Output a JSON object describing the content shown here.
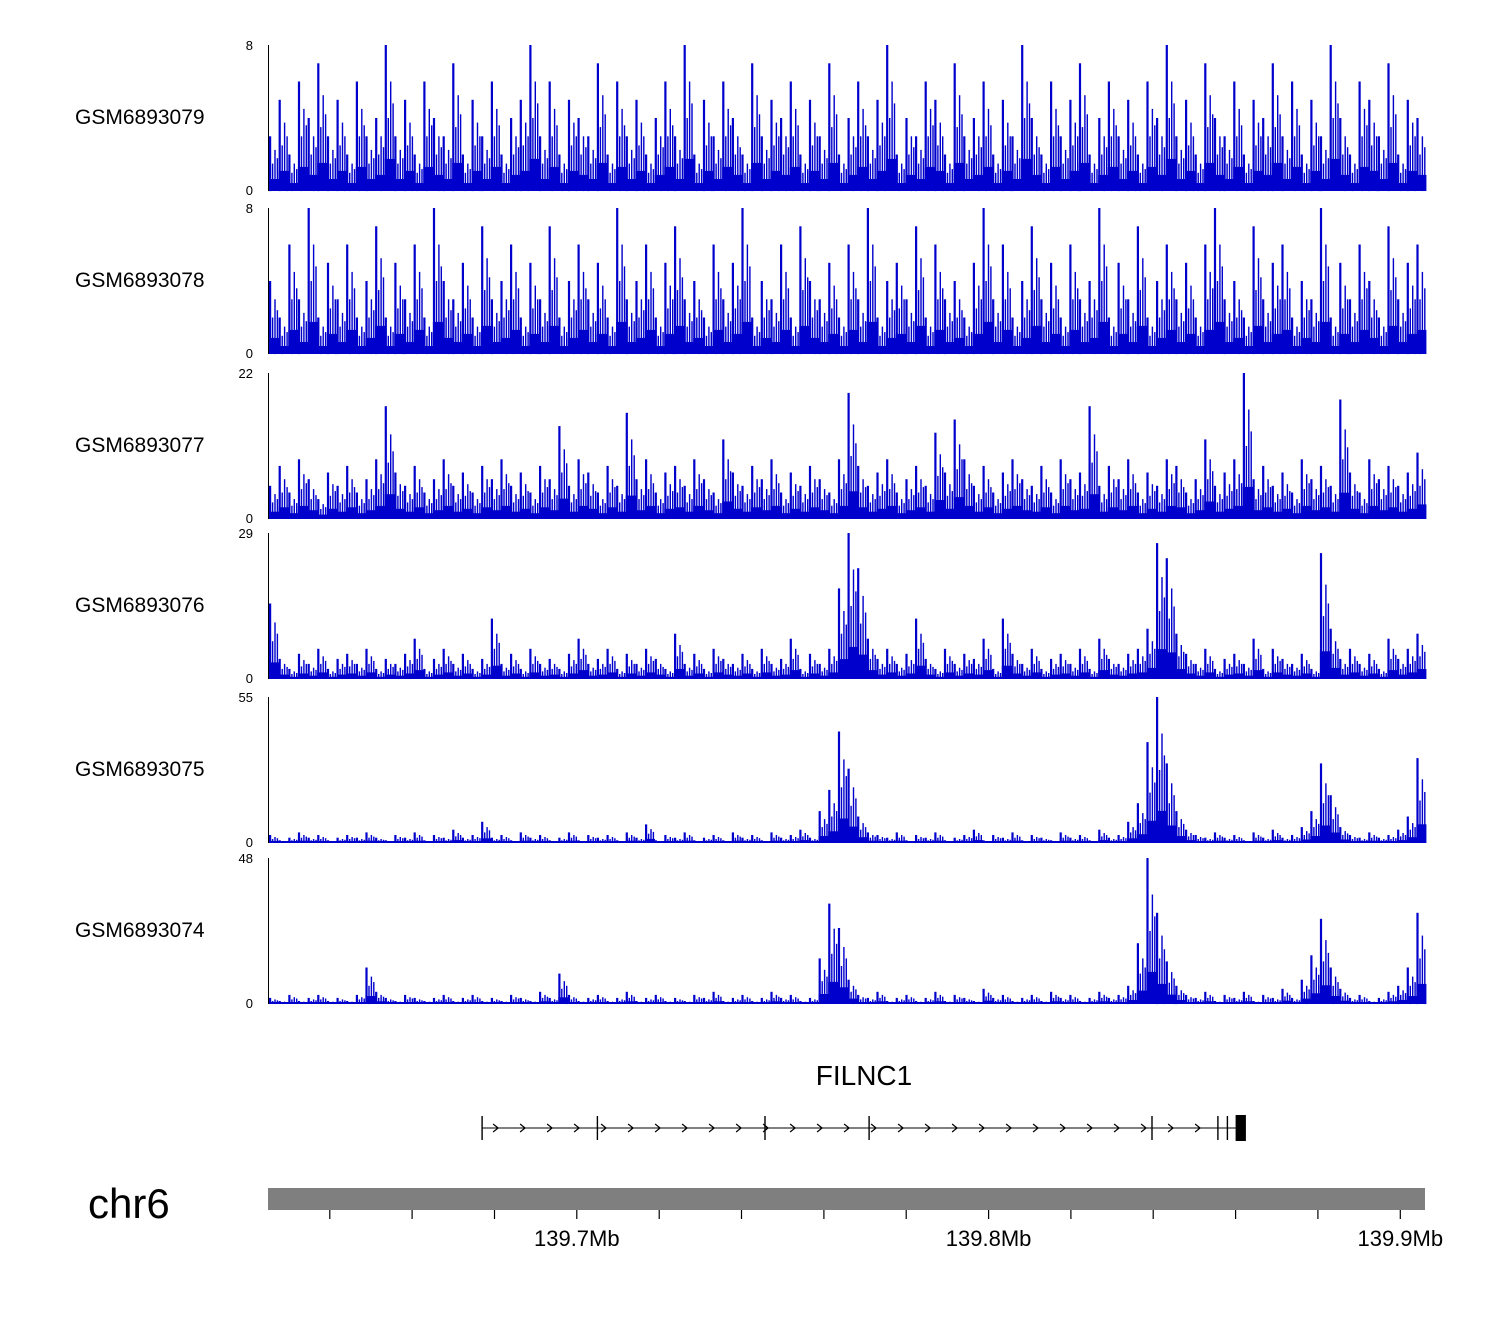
{
  "chart_data": {
    "type": "area",
    "subtype": "genome-coverage-tracks",
    "signal_color": "#0000CC",
    "chrom_bar_color": "#7f7f7f",
    "tracks": [
      {
        "label": "GSM6893079",
        "ymax": 8,
        "ymin": 0,
        "values": [
          3,
          5,
          2,
          6,
          4,
          7,
          3,
          5,
          2,
          6,
          3,
          4,
          8,
          3,
          5,
          2,
          6,
          4,
          3,
          7,
          2,
          5,
          3,
          6,
          2,
          4,
          5,
          8,
          3,
          6,
          2,
          5,
          4,
          3,
          7,
          2,
          6,
          3,
          5,
          2,
          4,
          6,
          3,
          8,
          2,
          5,
          3,
          6,
          4,
          2,
          7,
          3,
          5,
          4,
          6,
          2,
          5,
          3,
          7,
          2,
          4,
          6,
          3,
          5,
          8,
          2,
          4,
          3,
          6,
          5,
          2,
          7,
          3,
          4,
          6,
          2,
          5,
          3,
          8,
          4,
          2,
          6,
          3,
          5,
          7,
          2,
          4,
          6,
          3,
          5,
          2,
          6,
          4,
          8,
          3,
          5,
          2,
          7,
          4,
          3,
          6,
          2,
          5,
          4,
          7,
          3,
          6,
          2,
          5,
          3,
          8,
          4,
          2,
          6,
          5,
          3,
          7,
          2,
          5,
          4
        ]
      },
      {
        "label": "GSM6893078",
        "ymax": 8,
        "ymin": 0,
        "values": [
          4,
          2,
          6,
          3,
          8,
          2,
          5,
          3,
          6,
          2,
          4,
          7,
          2,
          5,
          3,
          6,
          2,
          8,
          4,
          3,
          5,
          2,
          7,
          3,
          4,
          6,
          2,
          5,
          3,
          7,
          2,
          4,
          6,
          3,
          5,
          2,
          8,
          3,
          4,
          6,
          2,
          5,
          7,
          3,
          4,
          2,
          6,
          3,
          5,
          8,
          2,
          4,
          3,
          6,
          2,
          7,
          4,
          3,
          5,
          2,
          6,
          3,
          8,
          2,
          4,
          5,
          3,
          7,
          2,
          6,
          3,
          4,
          2,
          5,
          8,
          3,
          6,
          2,
          4,
          7,
          3,
          5,
          2,
          6,
          3,
          4,
          8,
          2,
          5,
          3,
          7,
          2,
          4,
          6,
          3,
          5,
          2,
          6,
          8,
          3,
          4,
          2,
          7,
          3,
          5,
          6,
          2,
          4,
          3,
          8,
          2,
          5,
          3,
          6,
          4,
          2,
          7,
          3,
          5,
          6
        ]
      },
      {
        "label": "GSM6893077",
        "ymax": 22,
        "ymin": 0,
        "values": [
          5,
          8,
          4,
          9,
          6,
          3,
          7,
          5,
          8,
          4,
          6,
          9,
          17,
          7,
          5,
          8,
          4,
          6,
          9,
          5,
          7,
          4,
          8,
          6,
          9,
          5,
          7,
          4,
          8,
          6,
          14,
          5,
          9,
          7,
          4,
          8,
          5,
          16,
          6,
          9,
          4,
          7,
          8,
          5,
          9,
          6,
          4,
          12,
          7,
          5,
          8,
          6,
          9,
          4,
          7,
          5,
          8,
          6,
          4,
          9,
          19,
          8,
          5,
          7,
          9,
          4,
          6,
          8,
          5,
          13,
          7,
          15,
          9,
          5,
          8,
          4,
          7,
          9,
          6,
          5,
          8,
          4,
          9,
          6,
          7,
          17,
          5,
          8,
          6,
          9,
          4,
          7,
          5,
          9,
          8,
          4,
          6,
          12,
          5,
          7,
          9,
          22,
          6,
          8,
          5,
          7,
          4,
          9,
          6,
          8,
          5,
          18,
          7,
          4,
          9,
          6,
          8,
          5,
          7,
          10
        ]
      },
      {
        "label": "GSM6893076",
        "ymax": 29,
        "ymin": 0,
        "values": [
          15,
          4,
          2,
          5,
          3,
          6,
          2,
          4,
          5,
          3,
          6,
          2,
          4,
          3,
          5,
          8,
          2,
          4,
          6,
          3,
          5,
          2,
          4,
          12,
          3,
          5,
          2,
          6,
          3,
          4,
          2,
          5,
          8,
          3,
          4,
          6,
          2,
          5,
          3,
          6,
          4,
          2,
          9,
          3,
          5,
          2,
          6,
          4,
          3,
          5,
          2,
          6,
          3,
          4,
          8,
          2,
          5,
          3,
          6,
          18,
          29,
          22,
          8,
          4,
          6,
          3,
          5,
          12,
          4,
          2,
          6,
          3,
          5,
          4,
          8,
          2,
          12,
          5,
          3,
          6,
          2,
          4,
          5,
          3,
          6,
          2,
          8,
          4,
          3,
          5,
          6,
          10,
          27,
          24,
          9,
          5,
          3,
          6,
          2,
          4,
          5,
          3,
          8,
          2,
          6,
          4,
          3,
          5,
          2,
          25,
          10,
          4,
          6,
          3,
          5,
          2,
          8,
          4,
          6,
          9
        ]
      },
      {
        "label": "GSM6893075",
        "ymax": 55,
        "ymin": 0,
        "values": [
          3,
          1,
          2,
          4,
          2,
          3,
          1,
          2,
          3,
          2,
          4,
          2,
          1,
          3,
          2,
          4,
          1,
          3,
          2,
          5,
          2,
          3,
          8,
          2,
          3,
          1,
          4,
          2,
          3,
          1,
          2,
          4,
          1,
          3,
          2,
          3,
          1,
          4,
          2,
          7,
          1,
          3,
          2,
          4,
          1,
          2,
          3,
          1,
          4,
          2,
          3,
          1,
          4,
          2,
          3,
          5,
          2,
          12,
          20,
          42,
          28,
          10,
          4,
          3,
          2,
          4,
          1,
          3,
          2,
          4,
          1,
          2,
          3,
          5,
          1,
          3,
          2,
          4,
          1,
          3,
          2,
          1,
          4,
          2,
          3,
          1,
          5,
          2,
          3,
          8,
          15,
          38,
          55,
          30,
          12,
          5,
          3,
          2,
          4,
          2,
          3,
          1,
          4,
          2,
          5,
          2,
          3,
          6,
          12,
          30,
          18,
          6,
          3,
          2,
          4,
          2,
          3,
          5,
          10,
          32
        ]
      },
      {
        "label": "GSM6893074",
        "ymax": 48,
        "ymin": 0,
        "values": [
          2,
          1,
          3,
          1,
          2,
          3,
          1,
          2,
          1,
          3,
          12,
          4,
          2,
          1,
          3,
          2,
          1,
          2,
          3,
          1,
          2,
          3,
          1,
          2,
          1,
          3,
          2,
          1,
          4,
          2,
          10,
          3,
          1,
          2,
          3,
          1,
          2,
          4,
          1,
          2,
          3,
          1,
          2,
          1,
          3,
          2,
          4,
          1,
          2,
          3,
          1,
          2,
          4,
          2,
          3,
          1,
          2,
          15,
          33,
          25,
          8,
          3,
          2,
          4,
          1,
          2,
          3,
          1,
          2,
          4,
          1,
          3,
          2,
          1,
          5,
          2,
          3,
          1,
          2,
          3,
          1,
          4,
          2,
          3,
          1,
          2,
          4,
          2,
          3,
          6,
          20,
          48,
          30,
          14,
          6,
          3,
          2,
          4,
          1,
          3,
          2,
          4,
          1,
          3,
          2,
          5,
          2,
          8,
          16,
          28,
          12,
          5,
          2,
          3,
          1,
          2,
          4,
          6,
          12,
          30
        ]
      }
    ],
    "gene": {
      "name": "FILNC1",
      "strand": "+",
      "start_mb": 139.677,
      "end_mb": 139.8625,
      "exon_ticks_mb": [
        139.677,
        139.705,
        139.7457,
        139.771,
        139.8397,
        139.8557,
        139.858
      ],
      "final_exon": {
        "start_mb": 139.86,
        "end_mb": 139.8625
      }
    },
    "axis": {
      "chrom": "chr6",
      "unit": "Mb",
      "min_mb": 139.625,
      "max_mb": 139.906,
      "major_ticks": [
        {
          "value_mb": 139.7,
          "label": "139.7Mb"
        },
        {
          "value_mb": 139.8,
          "label": "139.8Mb"
        },
        {
          "value_mb": 139.9,
          "label": "139.9Mb"
        }
      ],
      "minor_tick_start_mb": 139.64,
      "minor_tick_step_mb": 0.02,
      "minor_tick_count": 14
    }
  }
}
